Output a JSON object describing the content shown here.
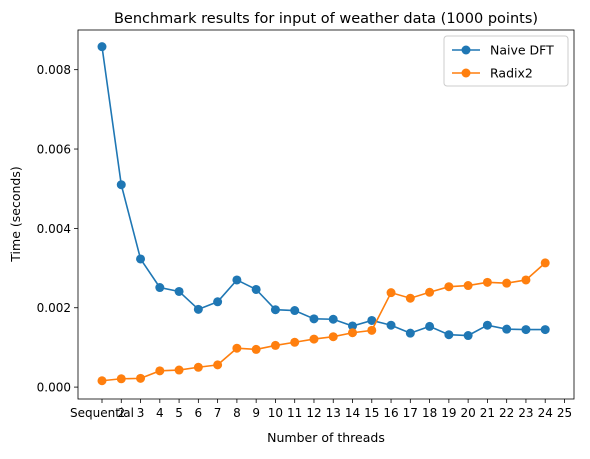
{
  "chart_data": {
    "type": "line",
    "title": "Benchmark results for input of weather data (1000 points)",
    "xlabel": "Number of threads",
    "ylabel": "Time (seconds)",
    "x_ticks": [
      "Sequential",
      "2",
      "3",
      "4",
      "5",
      "6",
      "7",
      "8",
      "9",
      "10",
      "11",
      "12",
      "13",
      "14",
      "15",
      "16",
      "17",
      "18",
      "19",
      "20",
      "21",
      "22",
      "23",
      "24",
      "25"
    ],
    "y_ticks": [
      "0.000",
      "0.002",
      "0.004",
      "0.006",
      "0.008"
    ],
    "ylim": [
      -0.0003,
      0.009
    ],
    "grid": false,
    "legend_position": "top-right",
    "series": [
      {
        "name": "Naive DFT",
        "color": "#1f77b4",
        "x": [
          "Sequential",
          "2",
          "3",
          "4",
          "5",
          "6",
          "7",
          "8",
          "9",
          "10",
          "11",
          "12",
          "13",
          "14",
          "15",
          "16",
          "17",
          "18",
          "19",
          "20",
          "21",
          "22",
          "23",
          "24"
        ],
        "values": [
          0.00858,
          0.0051,
          0.00323,
          0.00251,
          0.00241,
          0.00196,
          0.00215,
          0.0027,
          0.00246,
          0.00195,
          0.00193,
          0.00172,
          0.00171,
          0.00154,
          0.00168,
          0.00156,
          0.00136,
          0.00153,
          0.00132,
          0.0013,
          0.00156,
          0.00146,
          0.00145,
          0.00145
        ]
      },
      {
        "name": "Radix2",
        "color": "#ff7f0e",
        "x": [
          "Sequential",
          "2",
          "3",
          "4",
          "5",
          "6",
          "7",
          "8",
          "9",
          "10",
          "11",
          "12",
          "13",
          "14",
          "15",
          "16",
          "17",
          "18",
          "19",
          "20",
          "21",
          "22",
          "23",
          "24"
        ],
        "values": [
          0.00016,
          0.00021,
          0.00022,
          0.00041,
          0.00043,
          0.0005,
          0.00056,
          0.00098,
          0.00095,
          0.00105,
          0.00113,
          0.00121,
          0.00127,
          0.00137,
          0.00143,
          0.00238,
          0.00224,
          0.00239,
          0.00253,
          0.00256,
          0.00264,
          0.00262,
          0.0027,
          0.00313
        ]
      }
    ]
  }
}
